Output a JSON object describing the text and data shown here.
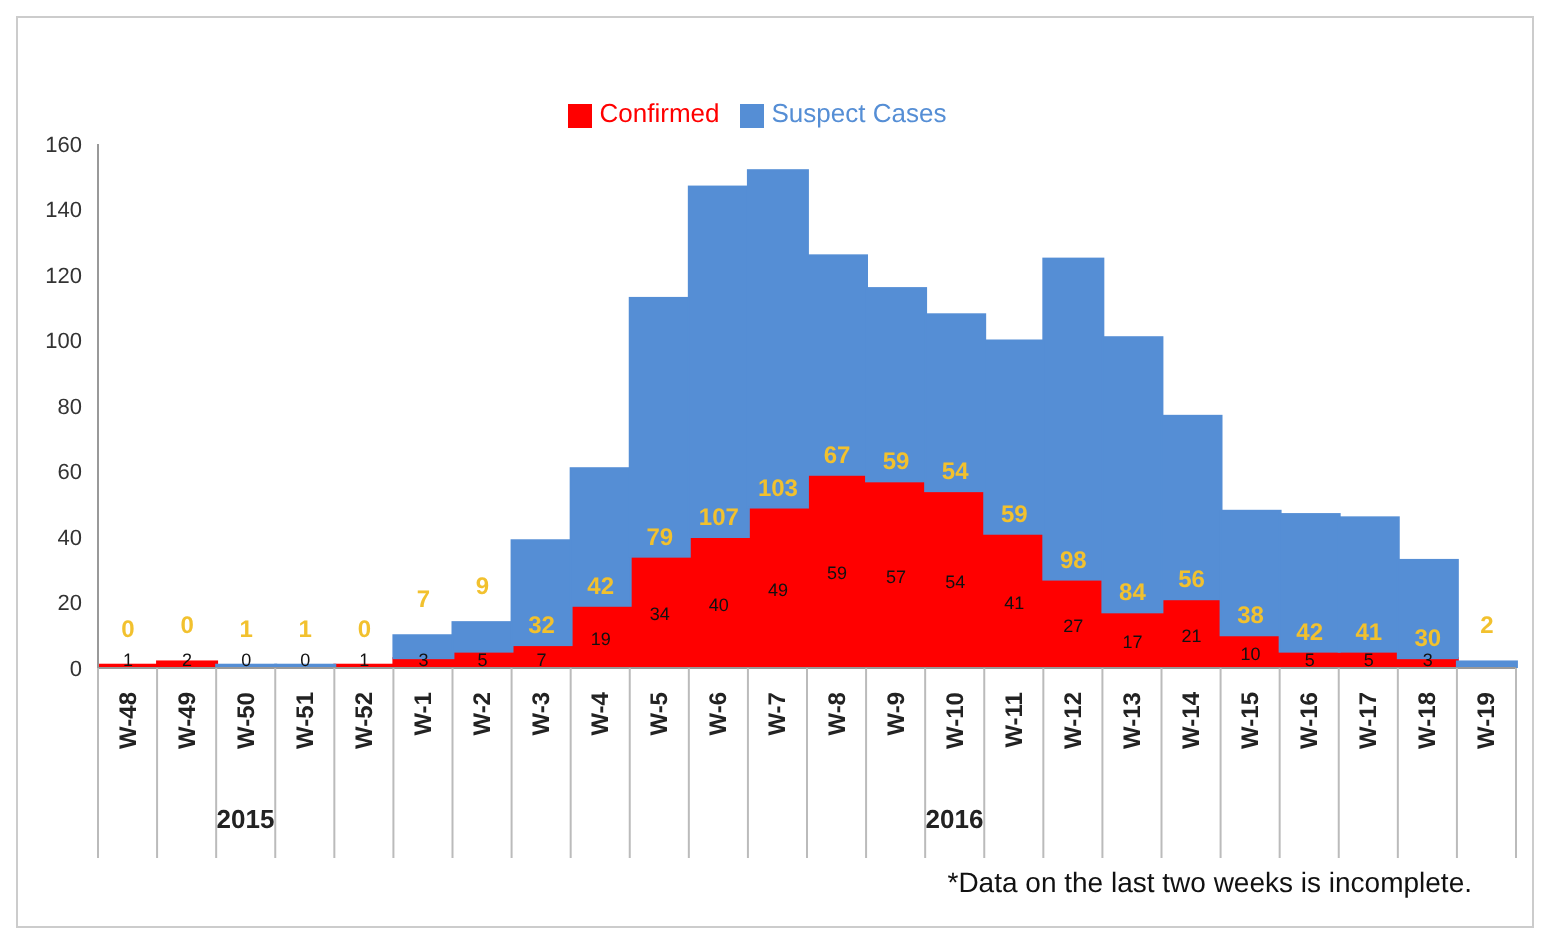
{
  "chart_data": {
    "type": "bar",
    "stacked": true,
    "categories": [
      "W-48",
      "W-49",
      "W-50",
      "W-51",
      "W-52",
      "W-1",
      "W-2",
      "W-3",
      "W-4",
      "W-5",
      "W-6",
      "W-7",
      "W-8",
      "W-9",
      "W-10",
      "W-11",
      "W-12",
      "W-13",
      "W-14",
      "W-15",
      "W-16",
      "W-17",
      "W-18",
      "W-19"
    ],
    "series": [
      {
        "name": "Confirmed",
        "color": "#ff0000",
        "values": [
          1,
          2,
          0,
          0,
          1,
          3,
          5,
          7,
          19,
          34,
          40,
          49,
          59,
          57,
          54,
          41,
          27,
          17,
          21,
          10,
          5,
          5,
          3,
          0
        ],
        "value_labels": [
          "1",
          "2",
          "0",
          "0",
          "1",
          "3",
          "5",
          "7",
          "19",
          "34",
          "40",
          "49",
          "59",
          "57",
          "54",
          "41",
          "27",
          "17",
          "21",
          "10",
          "5",
          "5",
          "3",
          null
        ]
      },
      {
        "name": "Suspect Cases",
        "color": "#558ed5",
        "values": [
          0,
          0,
          1,
          1,
          0,
          7,
          9,
          32,
          42,
          79,
          107,
          103,
          67,
          59,
          54,
          59,
          98,
          84,
          56,
          38,
          42,
          41,
          30,
          2
        ],
        "value_labels": [
          "0",
          "0",
          "1",
          "1",
          "0",
          "7",
          "9",
          "32",
          "42",
          "79",
          "107",
          "103",
          "67",
          "59",
          "54",
          "59",
          "98",
          "84",
          "56",
          "38",
          "42",
          "41",
          "30",
          "2"
        ]
      }
    ],
    "ylim": [
      0,
      160
    ],
    "yticks": [
      0,
      20,
      40,
      60,
      80,
      100,
      120,
      140,
      160
    ],
    "grid": false,
    "legend": "top",
    "annotations": [
      "2015",
      "2016",
      "*Data on the last two weeks is incomplete."
    ]
  }
}
